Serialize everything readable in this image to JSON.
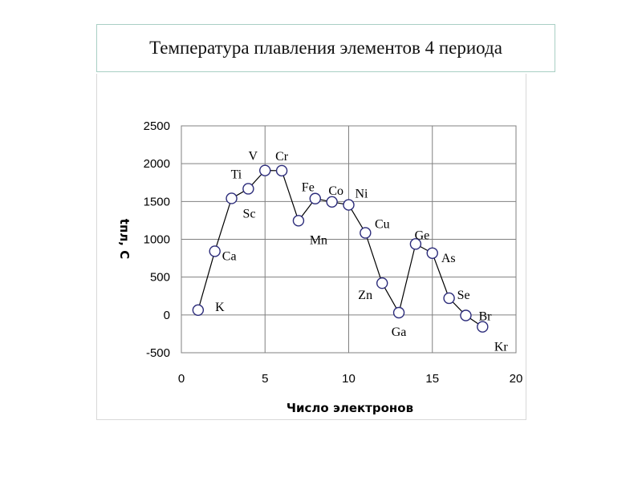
{
  "title": "Температура плавления элементов 4 периода",
  "chart_data": {
    "type": "line",
    "xlabel": "Число электронов",
    "ylabel": "tпл, С",
    "xlim": [
      0,
      20
    ],
    "ylim": [
      -500,
      2500
    ],
    "xticks": [
      "0",
      "5",
      "10",
      "15",
      "20"
    ],
    "yticks": [
      "2500",
      "2000",
      "1500",
      "1000",
      "500",
      "0",
      "-500"
    ],
    "grid": true,
    "series": [
      {
        "points": [
          {
            "x": 1,
            "y": 64,
            "label": "K"
          },
          {
            "x": 2,
            "y": 842,
            "label": "Ca"
          },
          {
            "x": 3,
            "y": 1541,
            "label": "Sc"
          },
          {
            "x": 4,
            "y": 1668,
            "label": "Ti"
          },
          {
            "x": 5,
            "y": 1910,
            "label": "V"
          },
          {
            "x": 6,
            "y": 1907,
            "label": "Cr"
          },
          {
            "x": 7,
            "y": 1246,
            "label": "Mn"
          },
          {
            "x": 8,
            "y": 1538,
            "label": "Fe"
          },
          {
            "x": 9,
            "y": 1495,
            "label": "Co"
          },
          {
            "x": 10,
            "y": 1455,
            "label": "Ni"
          },
          {
            "x": 11,
            "y": 1085,
            "label": "Cu"
          },
          {
            "x": 12,
            "y": 420,
            "label": "Zn"
          },
          {
            "x": 13,
            "y": 30,
            "label": "Ga"
          },
          {
            "x": 14,
            "y": 938,
            "label": "Ge"
          },
          {
            "x": 15,
            "y": 817,
            "label": "As"
          },
          {
            "x": 16,
            "y": 221,
            "label": "Se"
          },
          {
            "x": 17,
            "y": -7,
            "label": "Br"
          },
          {
            "x": 18,
            "y": -157,
            "label": "Kr"
          }
        ]
      }
    ]
  }
}
